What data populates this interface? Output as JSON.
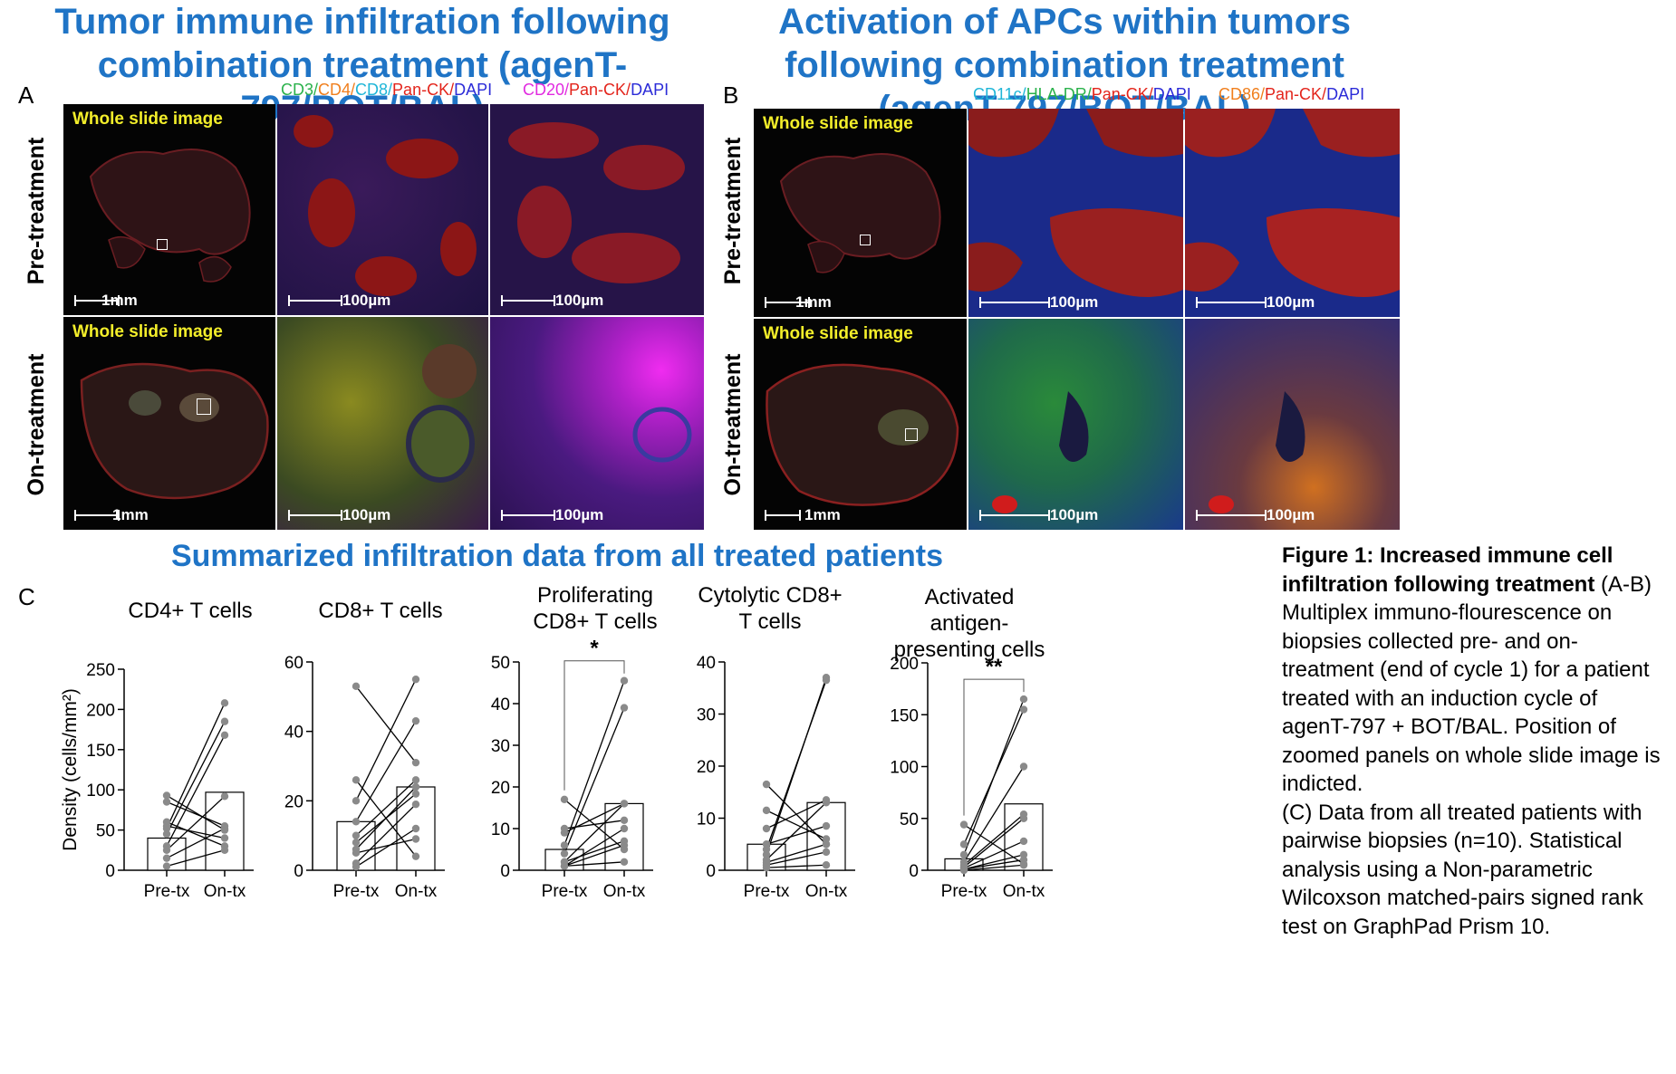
{
  "titles": {
    "left": "Tumor immune infiltration following combination treatment (agenT-797/BOT/BAL)",
    "right": "Activation of APCs within tumors following combination treatment (agenT-797/BOT/BAL)",
    "summary": "Summarized infiltration data from all treated patients"
  },
  "panel_letters": {
    "a": "A",
    "b": "B",
    "c": "C"
  },
  "channels": {
    "a2": [
      {
        "text": "CD3/",
        "color": "#2bb24c"
      },
      {
        "text": "CD4/",
        "color": "#f07f1d"
      },
      {
        "text": "CD8/",
        "color": "#1fb6d8"
      },
      {
        "text": "Pan-CK/",
        "color": "#e3241b"
      },
      {
        "text": "DAPI",
        "color": "#2b2bd8"
      }
    ],
    "a3": [
      {
        "text": "CD20/",
        "color": "#e12be0"
      },
      {
        "text": "Pan-CK/",
        "color": "#e3241b"
      },
      {
        "text": "DAPI",
        "color": "#2b2bd8"
      }
    ],
    "b2": [
      {
        "text": "CD11c/",
        "color": "#1fb6d8"
      },
      {
        "text": "HLA-DR/",
        "color": "#2bb24c"
      },
      {
        "text": "Pan-CK/",
        "color": "#e3241b"
      },
      {
        "text": "DAPI",
        "color": "#2b2bd8"
      }
    ],
    "b3": [
      {
        "text": "CD86/",
        "color": "#f07f1d"
      },
      {
        "text": "Pan-CK/",
        "color": "#e3241b"
      },
      {
        "text": "DAPI",
        "color": "#2b2bd8"
      }
    ]
  },
  "row_labels": {
    "pre": "Pre-treatment",
    "on": "On-treatment"
  },
  "image_labels": {
    "whole_slide": "Whole slide image",
    "scale_1mm": "1mm",
    "scale_100um": "100µm"
  },
  "caption": {
    "bold": "Figure 1: Increased immune cell infiltration following treatment",
    "ab_ref": "(A-B)",
    "ab_text": "Multiplex immuno-flourescence on biopsies collected pre- and on-treatment (end of cycle 1) for a patient treated with an induction cycle of agenT-797 + BOT/BAL. Position of zoomed panels on whole slide image is indicted.",
    "c_ref": "(C)",
    "c_text": "Data from all treated patients with pairwise biopsies (n=10). Statistical analysis using a Non-parametric Wilcoxson matched-pairs signed rank test on GraphPad Prism 10."
  },
  "colors": {
    "title_blue": "#1f74c6",
    "whole_slide_label": "#f3ee2a"
  },
  "chart_data": [
    {
      "type": "bar",
      "title": "CD4+ T cells",
      "ylabel": "Density (cells/mm²)",
      "categories": [
        "Pre-tx",
        "On-tx"
      ],
      "ylim": [
        0,
        250
      ],
      "yticks": [
        0,
        50,
        100,
        150,
        200,
        250
      ],
      "bars": [
        40,
        97
      ],
      "pairs": [
        [
          93,
          50
        ],
        [
          85,
          55
        ],
        [
          60,
          30
        ],
        [
          55,
          40
        ],
        [
          52,
          208
        ],
        [
          45,
          185
        ],
        [
          30,
          168
        ],
        [
          25,
          92
        ],
        [
          15,
          52
        ],
        [
          5,
          25
        ]
      ],
      "significance": ""
    },
    {
      "type": "bar",
      "title": "CD8+ T cells",
      "ylabel": "",
      "categories": [
        "Pre-tx",
        "On-tx"
      ],
      "ylim": [
        0,
        60
      ],
      "yticks": [
        0,
        20,
        40,
        60
      ],
      "bars": [
        14,
        24
      ],
      "pairs": [
        [
          53,
          31
        ],
        [
          26,
          4
        ],
        [
          20,
          55
        ],
        [
          14,
          43
        ],
        [
          10,
          26
        ],
        [
          8,
          22
        ],
        [
          6,
          24
        ],
        [
          5,
          9
        ],
        [
          2,
          19
        ],
        [
          1,
          12
        ]
      ],
      "significance": ""
    },
    {
      "type": "bar",
      "title": "Proliferating CD8+ T cells",
      "ylabel": "",
      "categories": [
        "Pre-tx",
        "On-tx"
      ],
      "ylim": [
        0,
        50
      ],
      "yticks": [
        0,
        10,
        20,
        30,
        40,
        50
      ],
      "bars": [
        5,
        16
      ],
      "pairs": [
        [
          17,
          5
        ],
        [
          10,
          12
        ],
        [
          9,
          16
        ],
        [
          6,
          45.5
        ],
        [
          4,
          39
        ],
        [
          2,
          16
        ],
        [
          2,
          7
        ],
        [
          1,
          10
        ],
        [
          1,
          6
        ],
        [
          1,
          2
        ]
      ],
      "significance": "*"
    },
    {
      "type": "bar",
      "title": "Cytolytic CD8+ T cells",
      "ylabel": "",
      "categories": [
        "Pre-tx",
        "On-tx"
      ],
      "ylim": [
        0,
        40
      ],
      "yticks": [
        0,
        10,
        20,
        30,
        40
      ],
      "bars": [
        5,
        13
      ],
      "pairs": [
        [
          16.5,
          5
        ],
        [
          11.5,
          6
        ],
        [
          8,
          13.5
        ],
        [
          5,
          8.5
        ],
        [
          4,
          36.5
        ],
        [
          3,
          37
        ],
        [
          2,
          13
        ],
        [
          1.5,
          5
        ],
        [
          1,
          3.5
        ],
        [
          0.5,
          1
        ]
      ],
      "significance": ""
    },
    {
      "type": "bar",
      "title": "Activated antigen-presenting cells",
      "ylabel": "",
      "categories": [
        "Pre-tx",
        "On-tx"
      ],
      "ylim": [
        0,
        200
      ],
      "yticks": [
        0,
        50,
        100,
        150,
        200
      ],
      "bars": [
        11,
        64
      ],
      "pairs": [
        [
          44,
          6
        ],
        [
          25,
          155
        ],
        [
          15,
          165
        ],
        [
          8,
          100
        ],
        [
          5,
          54
        ],
        [
          3,
          50
        ],
        [
          2,
          28
        ],
        [
          1,
          15
        ],
        [
          1,
          10
        ],
        [
          0,
          5
        ]
      ],
      "significance": "**"
    }
  ]
}
